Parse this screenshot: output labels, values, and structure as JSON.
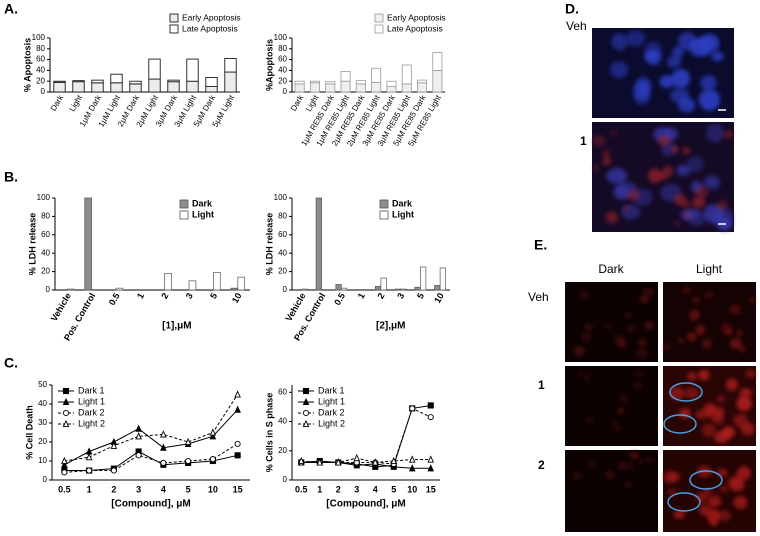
{
  "panels": [
    "A.",
    "B.",
    "C.",
    "D.",
    "E."
  ],
  "chart_data": [
    {
      "type": "bar",
      "stacked": true,
      "ylabel": "% Apoptosis",
      "ylim": [
        0,
        100
      ],
      "yticks": [
        0,
        20,
        40,
        60,
        80,
        100
      ],
      "xtick_rotation": -60,
      "legend": "above right",
      "edgecolor": "#000000",
      "categories": [
        "Dark",
        "Light",
        "1μM Dark",
        "1μM Light",
        "2μM Dark",
        "2μM Light",
        "3μM Dark",
        "3μM Light",
        "5μM Dark",
        "5μM Light"
      ],
      "series": [
        {
          "name": "Early Apoptosis",
          "color": "#ececec",
          "values": [
            18,
            19,
            17,
            17,
            15,
            24,
            19,
            20,
            10,
            37
          ]
        },
        {
          "name": "Late Apoptosis",
          "color": "#ffffff",
          "values": [
            2,
            2,
            5,
            16,
            5,
            37,
            3,
            41,
            17,
            25
          ]
        }
      ]
    },
    {
      "type": "bar",
      "stacked": true,
      "ylabel": "%Apoptosis",
      "ylim": [
        0,
        100
      ],
      "yticks": [
        0,
        20,
        40,
        60,
        80,
        100
      ],
      "xtick_rotation": -60,
      "legend": "above right",
      "edgecolor": "#999999",
      "categories": [
        "Dark",
        "Light",
        "1μM RE85 Dark",
        "1μM RE85 Light",
        "2μM RE85 Dark",
        "2μM RE85 Light",
        "3μM RE85 Dark",
        "3μM RE85 Light",
        "5μM RE85 Dark",
        "5μM RE85 Light"
      ],
      "series": [
        {
          "name": "Early Apoptosis",
          "color": "#efefef",
          "values": [
            15,
            17,
            15,
            20,
            15,
            18,
            10,
            15,
            17,
            40
          ]
        },
        {
          "name": "Late Apoptosis",
          "color": "#ffffff",
          "values": [
            5,
            3,
            4,
            18,
            6,
            26,
            10,
            35,
            5,
            33
          ]
        }
      ]
    },
    {
      "type": "bar",
      "stacked": false,
      "ylabel": "% LDH release",
      "xlabel": "[1],μM",
      "ylim": [
        0,
        100
      ],
      "yticks": [
        0,
        20,
        40,
        60,
        80,
        100
      ],
      "xtick_rotation": -60,
      "legend": "upper right",
      "edgecolor": "#555555",
      "categories": [
        "Vehicle",
        "Pos. Control",
        "0.5",
        "1",
        "2",
        "3",
        "5",
        "10"
      ],
      "series": [
        {
          "name": "Dark",
          "color": "#8c8c8c",
          "values": [
            0,
            100,
            0,
            0,
            0,
            0,
            0,
            2
          ]
        },
        {
          "name": "Light",
          "color": "#ffffff",
          "values": [
            1,
            null,
            2,
            0,
            18,
            10,
            19,
            14
          ]
        }
      ]
    },
    {
      "type": "bar",
      "stacked": false,
      "ylabel": "% LDH release",
      "xlabel": "[2],μM",
      "ylim": [
        0,
        100
      ],
      "yticks": [
        0,
        20,
        40,
        60,
        80,
        100
      ],
      "xtick_rotation": -60,
      "legend": "upper right",
      "edgecolor": "#555555",
      "categories": [
        "Vehicle",
        "Pos. Control",
        "0.5",
        "1",
        "2",
        "3",
        "5",
        "10"
      ],
      "series": [
        {
          "name": "Dark",
          "color": "#8c8c8c",
          "values": [
            0,
            100,
            6,
            0,
            4,
            1,
            3,
            5
          ]
        },
        {
          "name": "Light",
          "color": "#ffffff",
          "values": [
            1,
            null,
            2,
            0,
            13,
            1,
            25,
            24
          ]
        }
      ]
    },
    {
      "type": "line",
      "ylabel": "% Cell Death",
      "xlabel": "[Compound], μM",
      "ylim": [
        0,
        50
      ],
      "yticks": [
        0,
        10,
        20,
        30,
        40,
        50
      ],
      "legend": "upper left",
      "categories": [
        "0.5",
        "1",
        "2",
        "3",
        "4",
        "5",
        "10",
        "15"
      ],
      "series": [
        {
          "name": "Dark 1",
          "color": "#000000",
          "marker": "square",
          "linestyle": "solid",
          "values": [
            5,
            5,
            6,
            15,
            8,
            9,
            10,
            13
          ]
        },
        {
          "name": "Light 1",
          "color": "#000000",
          "marker": "triangle",
          "linestyle": "solid",
          "values": [
            8,
            15,
            20,
            27,
            17,
            19,
            23,
            37
          ]
        },
        {
          "name": "Dark 2",
          "color": "#000000",
          "marker": "circle-open",
          "linestyle": "dashed",
          "values": [
            4,
            5,
            5,
            13,
            9,
            10,
            11,
            19
          ]
        },
        {
          "name": "Light 2",
          "color": "#000000",
          "marker": "triangle-open",
          "linestyle": "dashed",
          "values": [
            10,
            12,
            18,
            23,
            24,
            20,
            25,
            45
          ]
        }
      ]
    },
    {
      "type": "line",
      "ylabel": "% Cells in S phase",
      "xlabel": "[Compound], μM",
      "ylim": [
        0,
        65
      ],
      "yticks": [
        0,
        20,
        40,
        60
      ],
      "legend": "upper left",
      "categories": [
        "0.5",
        "1",
        "2",
        "3",
        "4",
        "5",
        "10",
        "15"
      ],
      "series": [
        {
          "name": "Dark 1",
          "color": "#000000",
          "marker": "square",
          "linestyle": "solid",
          "values": [
            12,
            13,
            12,
            11,
            9,
            10,
            49,
            51
          ]
        },
        {
          "name": "Light 1",
          "color": "#000000",
          "marker": "triangle",
          "linestyle": "solid",
          "values": [
            12,
            12,
            12,
            10,
            11,
            9,
            8,
            8
          ]
        },
        {
          "name": "Dark 2",
          "color": "#000000",
          "marker": "circle-open",
          "linestyle": "dashed",
          "values": [
            12,
            12,
            12,
            12,
            12,
            11,
            49,
            43
          ]
        },
        {
          "name": "Light 2",
          "color": "#000000",
          "marker": "triangle-open",
          "linestyle": "dashed",
          "values": [
            13,
            12,
            12,
            15,
            12,
            13,
            14,
            14
          ]
        }
      ]
    }
  ],
  "images": {
    "d_rows": [
      "Veh",
      "1"
    ],
    "e_columns": [
      "Dark",
      "Light"
    ],
    "e_rows": [
      "Veh",
      "1",
      "2"
    ]
  }
}
